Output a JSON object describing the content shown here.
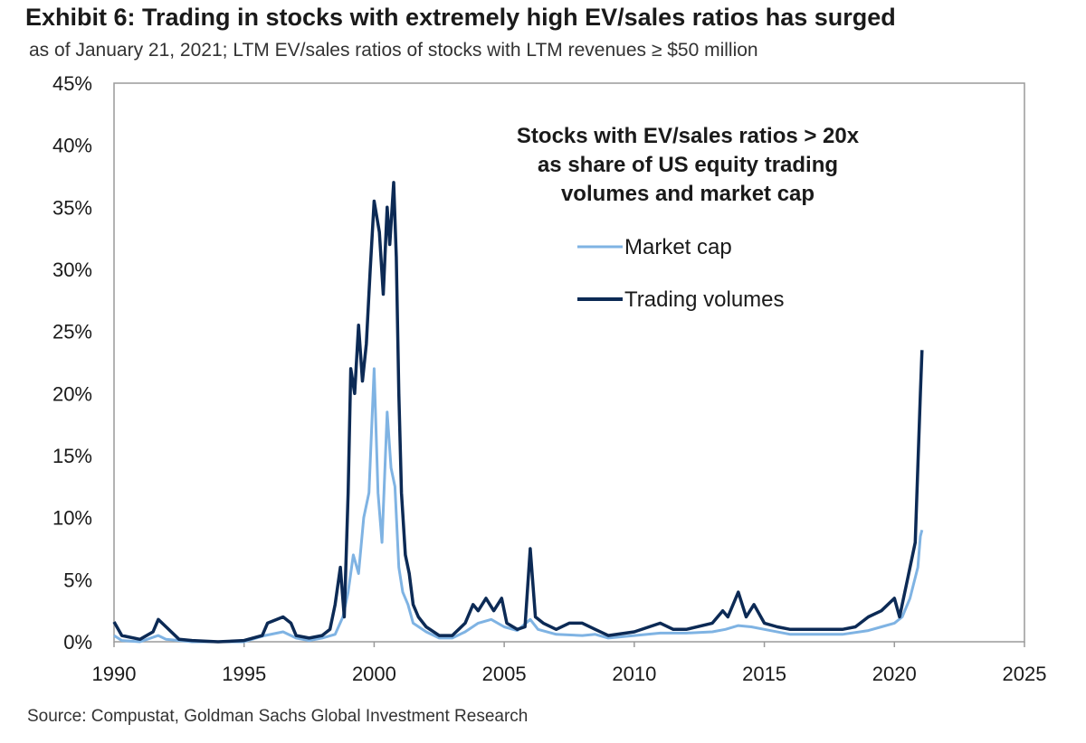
{
  "title": "Exhibit 6: Trading in stocks with extremely high EV/sales ratios has surged",
  "subtitle": "as of January 21, 2021; LTM EV/sales ratios of stocks with LTM revenues ≥ $50 million",
  "source": "Source: Compustat, Goldman Sachs Global Investment Research",
  "chart_data": {
    "type": "line",
    "title": "Exhibit 6: Trading in stocks with extremely high EV/sales ratios has surged",
    "subtitle": "as of January 21, 2021; LTM EV/sales ratios of stocks with LTM revenues ≥ $50 million",
    "annotation": [
      "Stocks with EV/sales ratios > 20x",
      "as share of US equity trading",
      "volumes and market cap"
    ],
    "xlim": [
      1990,
      2025
    ],
    "ylim": [
      0,
      45
    ],
    "x_ticks": [
      1990,
      1995,
      2000,
      2005,
      2010,
      2015,
      2020,
      2025
    ],
    "x_tick_labels": [
      "1990",
      "1995",
      "2000",
      "2005",
      "2010",
      "2015",
      "2020",
      "2025"
    ],
    "y_ticks": [
      0,
      5,
      10,
      15,
      20,
      25,
      30,
      35,
      40,
      45
    ],
    "y_tick_labels": [
      "0%",
      "5%",
      "10%",
      "15%",
      "20%",
      "25%",
      "30%",
      "35%",
      "40%",
      "45%"
    ],
    "legend_position": "upper-center",
    "grid": false,
    "series": [
      {
        "name": "Market cap",
        "color": "#7fb3e3",
        "points": [
          [
            1990.0,
            0.5
          ],
          [
            1990.3,
            0.1
          ],
          [
            1991.0,
            0.0
          ],
          [
            1991.7,
            0.5
          ],
          [
            1992.0,
            0.2
          ],
          [
            1993.0,
            0.0
          ],
          [
            1994.0,
            0.0
          ],
          [
            1995.0,
            0.0
          ],
          [
            1995.8,
            0.5
          ],
          [
            1996.5,
            0.8
          ],
          [
            1997.0,
            0.3
          ],
          [
            1997.5,
            0.1
          ],
          [
            1998.0,
            0.3
          ],
          [
            1998.5,
            0.6
          ],
          [
            1998.8,
            2.0
          ],
          [
            1999.0,
            4.0
          ],
          [
            1999.2,
            7.0
          ],
          [
            1999.4,
            5.5
          ],
          [
            1999.6,
            10.0
          ],
          [
            1999.8,
            12.0
          ],
          [
            2000.0,
            22.0
          ],
          [
            2000.15,
            12.0
          ],
          [
            2000.3,
            8.0
          ],
          [
            2000.5,
            18.5
          ],
          [
            2000.65,
            14.0
          ],
          [
            2000.8,
            12.5
          ],
          [
            2000.95,
            6.0
          ],
          [
            2001.1,
            4.0
          ],
          [
            2001.3,
            3.0
          ],
          [
            2001.5,
            1.5
          ],
          [
            2002.0,
            0.8
          ],
          [
            2002.5,
            0.3
          ],
          [
            2003.0,
            0.3
          ],
          [
            2003.5,
            0.8
          ],
          [
            2004.0,
            1.5
          ],
          [
            2004.5,
            1.8
          ],
          [
            2005.0,
            1.2
          ],
          [
            2005.5,
            0.9
          ],
          [
            2006.0,
            1.8
          ],
          [
            2006.3,
            1.0
          ],
          [
            2007.0,
            0.6
          ],
          [
            2008.0,
            0.5
          ],
          [
            2008.5,
            0.6
          ],
          [
            2009.0,
            0.3
          ],
          [
            2010.0,
            0.5
          ],
          [
            2011.0,
            0.7
          ],
          [
            2012.0,
            0.7
          ],
          [
            2013.0,
            0.8
          ],
          [
            2013.5,
            1.0
          ],
          [
            2014.0,
            1.3
          ],
          [
            2014.5,
            1.2
          ],
          [
            2015.0,
            1.0
          ],
          [
            2016.0,
            0.6
          ],
          [
            2017.0,
            0.6
          ],
          [
            2018.0,
            0.6
          ],
          [
            2019.0,
            0.9
          ],
          [
            2019.5,
            1.2
          ],
          [
            2020.0,
            1.5
          ],
          [
            2020.3,
            2.0
          ],
          [
            2020.6,
            3.5
          ],
          [
            2020.9,
            6.0
          ],
          [
            2021.0,
            8.5
          ],
          [
            2021.06,
            9.0
          ]
        ]
      },
      {
        "name": "Trading volumes",
        "color": "#0c2a55",
        "points": [
          [
            1990.0,
            1.6
          ],
          [
            1990.3,
            0.5
          ],
          [
            1991.0,
            0.2
          ],
          [
            1991.5,
            0.8
          ],
          [
            1991.7,
            1.8
          ],
          [
            1992.0,
            1.2
          ],
          [
            1992.5,
            0.2
          ],
          [
            1993.0,
            0.1
          ],
          [
            1994.0,
            0.0
          ],
          [
            1995.0,
            0.1
          ],
          [
            1995.7,
            0.5
          ],
          [
            1995.9,
            1.5
          ],
          [
            1996.5,
            2.0
          ],
          [
            1996.8,
            1.5
          ],
          [
            1997.0,
            0.5
          ],
          [
            1997.5,
            0.3
          ],
          [
            1998.0,
            0.5
          ],
          [
            1998.3,
            1.0
          ],
          [
            1998.5,
            3.0
          ],
          [
            1998.7,
            6.0
          ],
          [
            1998.85,
            2.0
          ],
          [
            1999.0,
            12.0
          ],
          [
            1999.1,
            22.0
          ],
          [
            1999.25,
            20.0
          ],
          [
            1999.4,
            25.5
          ],
          [
            1999.55,
            21.0
          ],
          [
            1999.7,
            24.0
          ],
          [
            1999.85,
            30.0
          ],
          [
            2000.0,
            35.5
          ],
          [
            2000.2,
            33.0
          ],
          [
            2000.35,
            28.0
          ],
          [
            2000.5,
            35.0
          ],
          [
            2000.6,
            32.0
          ],
          [
            2000.75,
            37.0
          ],
          [
            2000.85,
            31.0
          ],
          [
            2000.95,
            20.0
          ],
          [
            2001.05,
            12.0
          ],
          [
            2001.2,
            7.0
          ],
          [
            2001.35,
            5.5
          ],
          [
            2001.5,
            3.0
          ],
          [
            2001.7,
            2.0
          ],
          [
            2002.0,
            1.2
          ],
          [
            2002.5,
            0.5
          ],
          [
            2003.0,
            0.5
          ],
          [
            2003.5,
            1.5
          ],
          [
            2003.8,
            3.0
          ],
          [
            2004.0,
            2.5
          ],
          [
            2004.3,
            3.5
          ],
          [
            2004.6,
            2.5
          ],
          [
            2004.9,
            3.5
          ],
          [
            2005.1,
            1.5
          ],
          [
            2005.5,
            1.0
          ],
          [
            2005.8,
            1.2
          ],
          [
            2006.0,
            7.5
          ],
          [
            2006.2,
            2.0
          ],
          [
            2006.5,
            1.5
          ],
          [
            2007.0,
            1.0
          ],
          [
            2007.5,
            1.5
          ],
          [
            2008.0,
            1.5
          ],
          [
            2008.5,
            1.0
          ],
          [
            2009.0,
            0.5
          ],
          [
            2010.0,
            0.8
          ],
          [
            2011.0,
            1.5
          ],
          [
            2011.5,
            1.0
          ],
          [
            2012.0,
            1.0
          ],
          [
            2013.0,
            1.5
          ],
          [
            2013.4,
            2.5
          ],
          [
            2013.6,
            2.0
          ],
          [
            2014.0,
            4.0
          ],
          [
            2014.3,
            2.0
          ],
          [
            2014.6,
            3.0
          ],
          [
            2015.0,
            1.5
          ],
          [
            2015.5,
            1.2
          ],
          [
            2016.0,
            1.0
          ],
          [
            2017.0,
            1.0
          ],
          [
            2018.0,
            1.0
          ],
          [
            2018.5,
            1.2
          ],
          [
            2019.0,
            2.0
          ],
          [
            2019.5,
            2.5
          ],
          [
            2020.0,
            3.5
          ],
          [
            2020.2,
            2.0
          ],
          [
            2020.5,
            5.0
          ],
          [
            2020.8,
            8.0
          ],
          [
            2021.0,
            20.0
          ],
          [
            2021.06,
            23.5
          ]
        ]
      }
    ]
  }
}
